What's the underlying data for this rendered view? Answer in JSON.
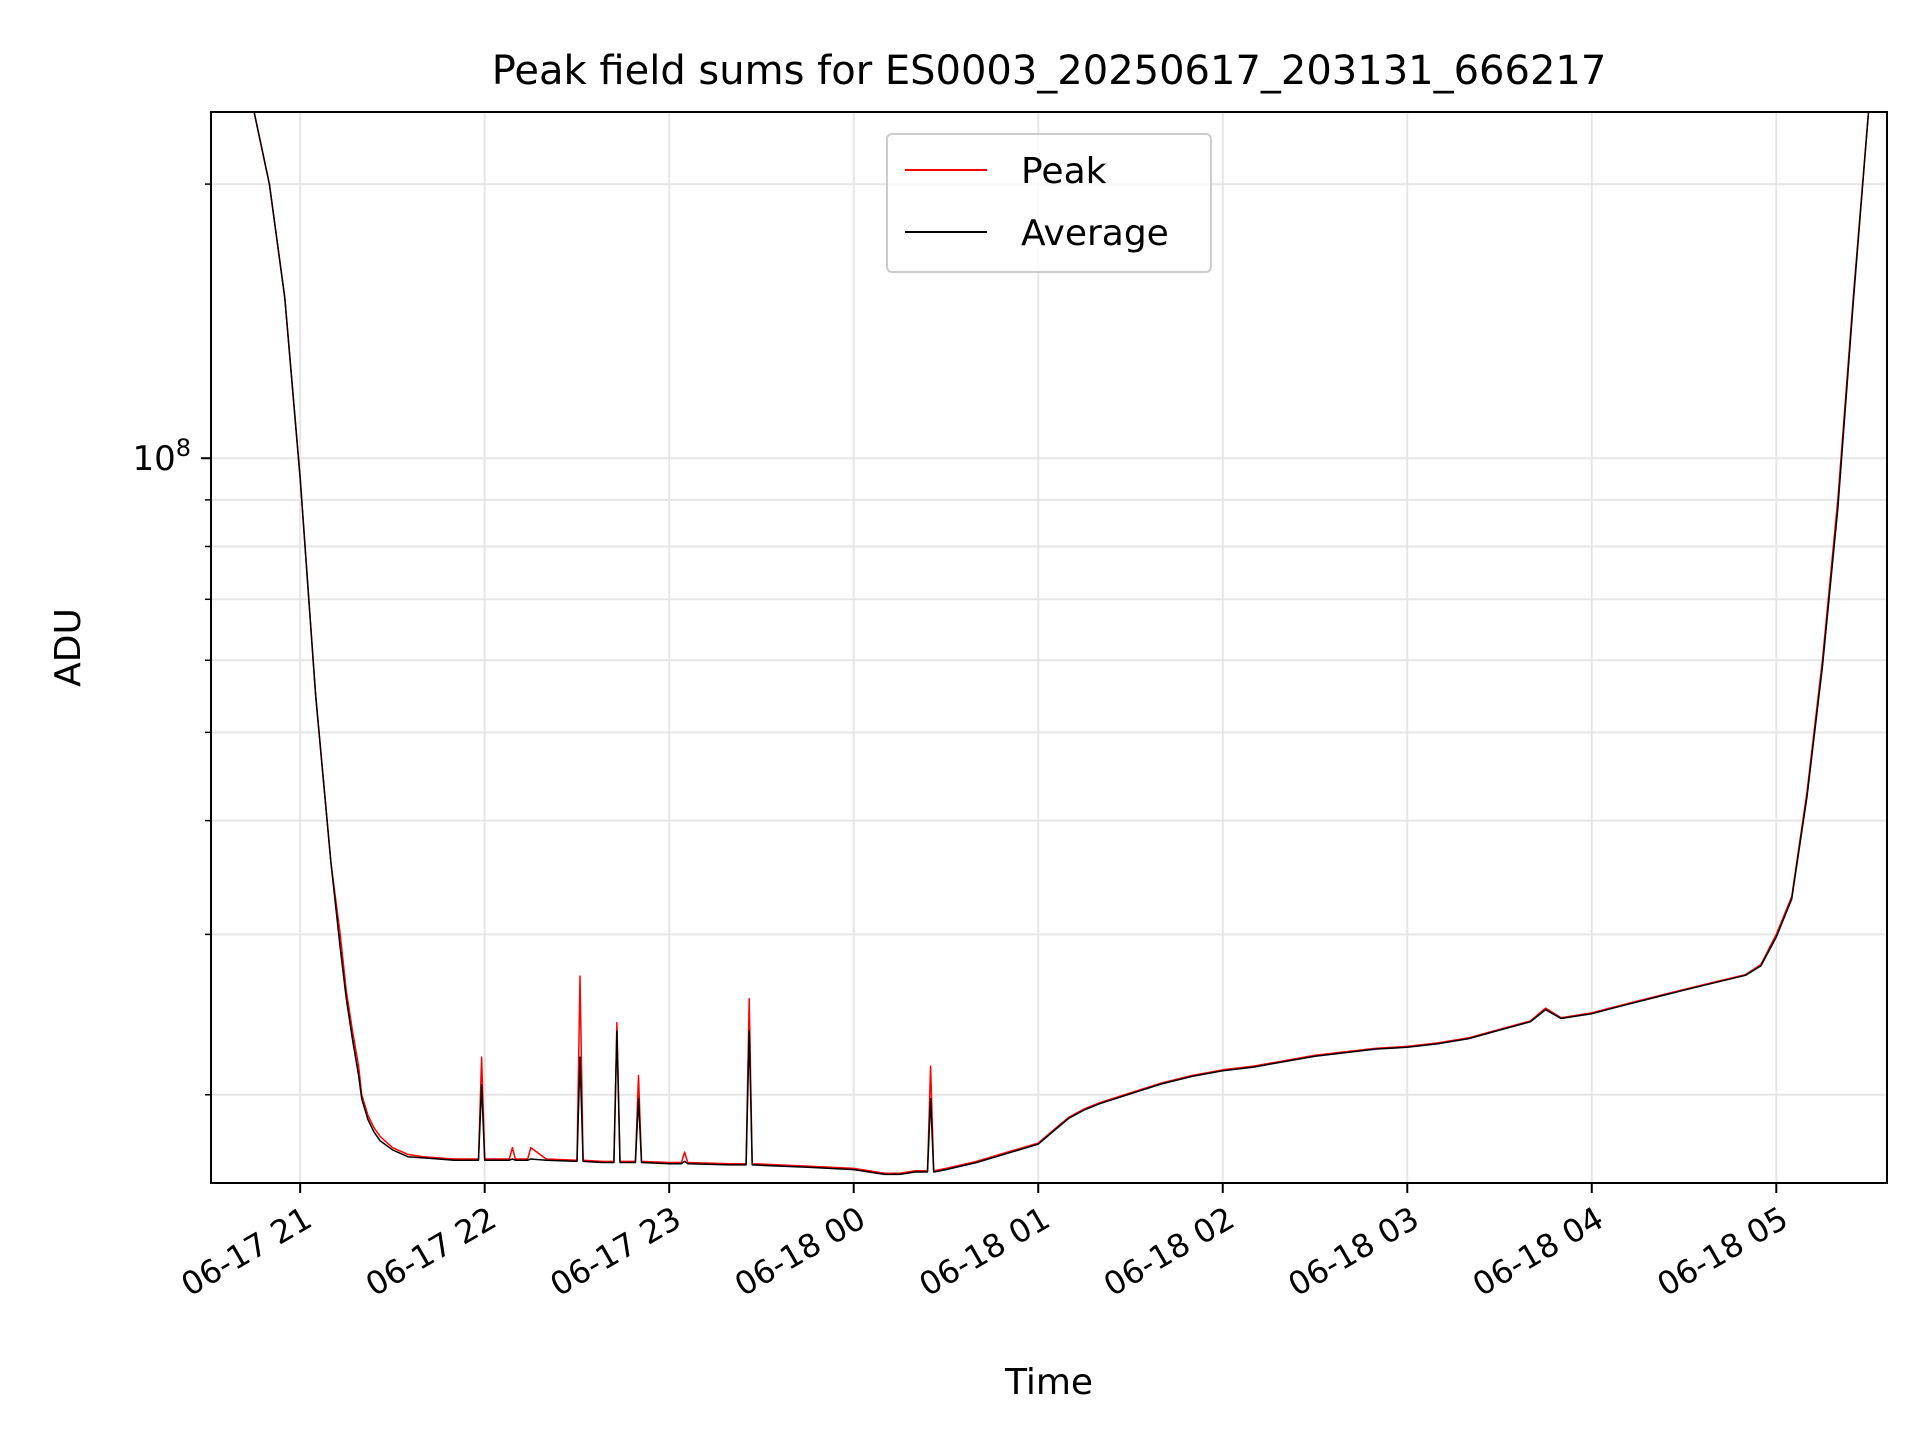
{
  "chart_data": {
    "type": "line",
    "title": "Peak field sums for ES0003_20250617_203131_666217",
    "xlabel": "Time",
    "ylabel": "ADU",
    "y_scale": "log",
    "y_tick_labels": [
      {
        "base": "10",
        "exp": "8",
        "value": 100000000
      }
    ],
    "y_minor_ticks": [
      20000000,
      30000000,
      40000000,
      50000000,
      60000000,
      70000000,
      80000000,
      90000000,
      200000000
    ],
    "ylim": [
      16000000,
      240000000
    ],
    "xlim": [
      "2025-06-17 20:31",
      "2025-06-18 05:36"
    ],
    "x_ticks": [
      {
        "time": "2025-06-17 21:00",
        "label": "06-17 21"
      },
      {
        "time": "2025-06-17 22:00",
        "label": "06-17 22"
      },
      {
        "time": "2025-06-17 23:00",
        "label": "06-17 23"
      },
      {
        "time": "2025-06-18 00:00",
        "label": "06-18 00"
      },
      {
        "time": "2025-06-18 01:00",
        "label": "06-18 01"
      },
      {
        "time": "2025-06-18 02:00",
        "label": "06-18 02"
      },
      {
        "time": "2025-06-18 03:00",
        "label": "06-18 03"
      },
      {
        "time": "2025-06-18 04:00",
        "label": "06-18 04"
      },
      {
        "time": "2025-06-18 05:00",
        "label": "06-18 05"
      }
    ],
    "grid": true,
    "legend_position": "upper center",
    "series": [
      {
        "name": "Peak",
        "color": "#ff0000",
        "x": [
          "2025-06-17 20:31",
          "2025-06-17 20:45",
          "2025-06-17 20:50",
          "2025-06-17 20:55",
          "2025-06-17 21:00",
          "2025-06-17 21:05",
          "2025-06-17 21:10",
          "2025-06-17 21:13",
          "2025-06-17 21:15",
          "2025-06-17 21:17",
          "2025-06-17 21:19",
          "2025-06-17 21:20",
          "2025-06-17 21:22",
          "2025-06-17 21:24",
          "2025-06-17 21:26",
          "2025-06-17 21:30",
          "2025-06-17 21:35",
          "2025-06-17 21:40",
          "2025-06-17 21:45",
          "2025-06-17 21:50",
          "2025-06-17 21:58",
          "2025-06-17 21:59",
          "2025-06-17 22:00",
          "2025-06-17 22:08",
          "2025-06-17 22:09",
          "2025-06-17 22:10",
          "2025-06-17 22:14",
          "2025-06-17 22:15",
          "2025-06-17 22:20",
          "2025-06-17 22:30",
          "2025-06-17 22:31",
          "2025-06-17 22:32",
          "2025-06-17 22:38",
          "2025-06-17 22:42",
          "2025-06-17 22:43",
          "2025-06-17 22:44",
          "2025-06-17 22:49",
          "2025-06-17 22:50",
          "2025-06-17 22:51",
          "2025-06-17 23:00",
          "2025-06-17 23:04",
          "2025-06-17 23:05",
          "2025-06-17 23:06",
          "2025-06-17 23:20",
          "2025-06-17 23:25",
          "2025-06-17 23:26",
          "2025-06-17 23:27",
          "2025-06-17 23:45",
          "2025-06-18 00:00",
          "2025-06-18 00:05",
          "2025-06-18 00:10",
          "2025-06-18 00:15",
          "2025-06-18 00:20",
          "2025-06-18 00:24",
          "2025-06-18 00:25",
          "2025-06-18 00:26",
          "2025-06-18 00:30",
          "2025-06-18 00:40",
          "2025-06-18 00:50",
          "2025-06-18 01:00",
          "2025-06-18 01:05",
          "2025-06-18 01:10",
          "2025-06-18 01:15",
          "2025-06-18 01:20",
          "2025-06-18 01:30",
          "2025-06-18 01:40",
          "2025-06-18 01:50",
          "2025-06-18 02:00",
          "2025-06-18 02:10",
          "2025-06-18 02:20",
          "2025-06-18 02:30",
          "2025-06-18 02:40",
          "2025-06-18 02:50",
          "2025-06-18 03:00",
          "2025-06-18 03:10",
          "2025-06-18 03:20",
          "2025-06-18 03:30",
          "2025-06-18 03:40",
          "2025-06-18 03:45",
          "2025-06-18 03:50",
          "2025-06-18 04:00",
          "2025-06-18 04:10",
          "2025-06-18 04:20",
          "2025-06-18 04:30",
          "2025-06-18 04:40",
          "2025-06-18 04:50",
          "2025-06-18 04:55",
          "2025-06-18 05:00",
          "2025-06-18 05:05",
          "2025-06-18 05:10",
          "2025-06-18 05:15",
          "2025-06-18 05:20",
          "2025-06-18 05:25",
          "2025-06-18 05:30",
          "2025-06-18 05:36"
        ],
        "y": [
          240000000,
          240000000,
          200000000,
          150000000,
          95000000,
          55000000,
          36000000,
          30000000,
          26000000,
          23500000,
          21500000,
          20000000,
          19000000,
          18400000,
          18000000,
          17500000,
          17200000,
          17100000,
          17050000,
          17000000,
          17000000,
          22000000,
          17000000,
          17000000,
          17500000,
          17000000,
          17000000,
          17500000,
          17000000,
          16950000,
          27000000,
          16950000,
          16900000,
          16900000,
          24000000,
          16900000,
          16900000,
          21000000,
          16900000,
          16850000,
          16850000,
          17300000,
          16850000,
          16800000,
          16800000,
          25500000,
          16800000,
          16700000,
          16600000,
          16500000,
          16400000,
          16400000,
          16500000,
          16500000,
          21500000,
          16500000,
          16600000,
          16900000,
          17300000,
          17700000,
          18300000,
          18900000,
          19300000,
          19600000,
          20100000,
          20600000,
          21000000,
          21300000,
          21500000,
          21800000,
          22100000,
          22300000,
          22500000,
          22600000,
          22800000,
          23100000,
          23600000,
          24100000,
          24900000,
          24300000,
          24600000,
          25100000,
          25600000,
          26100000,
          26600000,
          27100000,
          27800000,
          30000000,
          33000000,
          43000000,
          60000000,
          90000000,
          150000000,
          240000000,
          240000000
        ]
      },
      {
        "name": "Average",
        "color": "#000000",
        "x": [
          "2025-06-17 20:31",
          "2025-06-17 20:45",
          "2025-06-17 20:50",
          "2025-06-17 20:55",
          "2025-06-17 21:00",
          "2025-06-17 21:05",
          "2025-06-17 21:10",
          "2025-06-17 21:13",
          "2025-06-17 21:15",
          "2025-06-17 21:17",
          "2025-06-17 21:19",
          "2025-06-17 21:20",
          "2025-06-17 21:22",
          "2025-06-17 21:24",
          "2025-06-17 21:26",
          "2025-06-17 21:30",
          "2025-06-17 21:35",
          "2025-06-17 21:40",
          "2025-06-17 21:45",
          "2025-06-17 21:50",
          "2025-06-17 21:58",
          "2025-06-17 21:59",
          "2025-06-17 22:00",
          "2025-06-17 22:08",
          "2025-06-17 22:09",
          "2025-06-17 22:10",
          "2025-06-17 22:14",
          "2025-06-17 22:15",
          "2025-06-17 22:20",
          "2025-06-17 22:30",
          "2025-06-17 22:31",
          "2025-06-17 22:32",
          "2025-06-17 22:38",
          "2025-06-17 22:42",
          "2025-06-17 22:43",
          "2025-06-17 22:44",
          "2025-06-17 22:49",
          "2025-06-17 22:50",
          "2025-06-17 22:51",
          "2025-06-17 23:00",
          "2025-06-17 23:04",
          "2025-06-17 23:05",
          "2025-06-17 23:06",
          "2025-06-17 23:20",
          "2025-06-17 23:25",
          "2025-06-17 23:26",
          "2025-06-17 23:27",
          "2025-06-17 23:45",
          "2025-06-18 00:00",
          "2025-06-18 00:05",
          "2025-06-18 00:10",
          "2025-06-18 00:15",
          "2025-06-18 00:20",
          "2025-06-18 00:24",
          "2025-06-18 00:25",
          "2025-06-18 00:26",
          "2025-06-18 00:30",
          "2025-06-18 00:40",
          "2025-06-18 00:50",
          "2025-06-18 01:00",
          "2025-06-18 01:05",
          "2025-06-18 01:10",
          "2025-06-18 01:15",
          "2025-06-18 01:20",
          "2025-06-18 01:30",
          "2025-06-18 01:40",
          "2025-06-18 01:50",
          "2025-06-18 02:00",
          "2025-06-18 02:10",
          "2025-06-18 02:20",
          "2025-06-18 02:30",
          "2025-06-18 02:40",
          "2025-06-18 02:50",
          "2025-06-18 03:00",
          "2025-06-18 03:10",
          "2025-06-18 03:20",
          "2025-06-18 03:30",
          "2025-06-18 03:40",
          "2025-06-18 03:45",
          "2025-06-18 03:50",
          "2025-06-18 04:00",
          "2025-06-18 04:10",
          "2025-06-18 04:20",
          "2025-06-18 04:30",
          "2025-06-18 04:40",
          "2025-06-18 04:50",
          "2025-06-18 04:55",
          "2025-06-18 05:00",
          "2025-06-18 05:05",
          "2025-06-18 05:10",
          "2025-06-18 05:15",
          "2025-06-18 05:20",
          "2025-06-18 05:25",
          "2025-06-18 05:30",
          "2025-06-18 05:36"
        ],
        "y": [
          240000000,
          240000000,
          200000000,
          150000000,
          95000000,
          55000000,
          36000000,
          29000000,
          25500000,
          23000000,
          21000000,
          19800000,
          18800000,
          18200000,
          17800000,
          17400000,
          17100000,
          17050000,
          17000000,
          16950000,
          16950000,
          20500000,
          16950000,
          16950000,
          17000000,
          16950000,
          16950000,
          17000000,
          16950000,
          16900000,
          22000000,
          16900000,
          16850000,
          16850000,
          23500000,
          16850000,
          16850000,
          19800000,
          16850000,
          16800000,
          16800000,
          16900000,
          16800000,
          16750000,
          16750000,
          23500000,
          16750000,
          16650000,
          16550000,
          16450000,
          16350000,
          16350000,
          16450000,
          16450000,
          19800000,
          16450000,
          16550000,
          16850000,
          17250000,
          17650000,
          18250000,
          18850000,
          19250000,
          19550000,
          20050000,
          20550000,
          20950000,
          21250000,
          21450000,
          21750000,
          22050000,
          22250000,
          22450000,
          22550000,
          22750000,
          23050000,
          23550000,
          24050000,
          24800000,
          24250000,
          24550000,
          25050000,
          25550000,
          26050000,
          26550000,
          27050000,
          27700000,
          29800000,
          32800000,
          42500000,
          59000000,
          88000000,
          148000000,
          240000000,
          240000000
        ]
      }
    ]
  }
}
